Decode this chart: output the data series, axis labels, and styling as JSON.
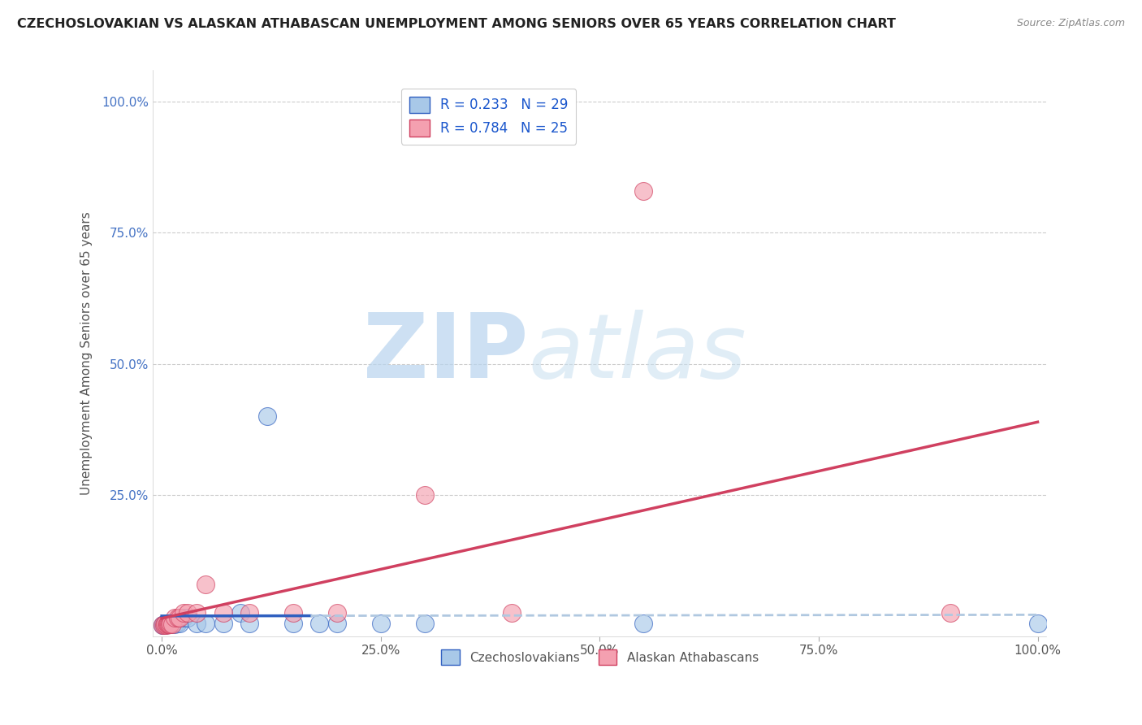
{
  "title": "CZECHOSLOVAKIAN VS ALASKAN ATHABASCAN UNEMPLOYMENT AMONG SENIORS OVER 65 YEARS CORRELATION CHART",
  "source": "Source: ZipAtlas.com",
  "ylabel": "Unemployment Among Seniors over 65 years",
  "legend_label1": "Czechoslovakians",
  "legend_label2": "Alaskan Athabascans",
  "R1": 0.233,
  "N1": 29,
  "R2": 0.784,
  "N2": 25,
  "color1": "#a8c8e8",
  "color2": "#f4a0b0",
  "line_color1": "#3060c0",
  "line_color2": "#d04060",
  "dash_color": "#b0c8e0",
  "watermark_zip": "ZIP",
  "watermark_atlas": "atlas",
  "blue_x": [
    0.001,
    0.002,
    0.003,
    0.004,
    0.005,
    0.006,
    0.007,
    0.008,
    0.009,
    0.01,
    0.012,
    0.015,
    0.018,
    0.02,
    0.025,
    0.03,
    0.04,
    0.05,
    0.07,
    0.09,
    0.1,
    0.12,
    0.15,
    0.18,
    0.2,
    0.25,
    0.3,
    0.55,
    1.0
  ],
  "blue_y": [
    0.002,
    0.001,
    0.003,
    0.002,
    0.004,
    0.003,
    0.005,
    0.003,
    0.004,
    0.003,
    0.005,
    0.004,
    0.006,
    0.005,
    0.015,
    0.015,
    0.005,
    0.005,
    0.005,
    0.025,
    0.005,
    0.4,
    0.005,
    0.005,
    0.005,
    0.005,
    0.005,
    0.005,
    0.005
  ],
  "pink_x": [
    0.001,
    0.003,
    0.004,
    0.005,
    0.006,
    0.007,
    0.008,
    0.009,
    0.01,
    0.012,
    0.015,
    0.018,
    0.02,
    0.025,
    0.03,
    0.04,
    0.05,
    0.07,
    0.1,
    0.15,
    0.2,
    0.3,
    0.4,
    0.55,
    0.9
  ],
  "pink_y": [
    0.001,
    0.002,
    0.003,
    0.002,
    0.004,
    0.003,
    0.004,
    0.003,
    0.005,
    0.004,
    0.015,
    0.015,
    0.015,
    0.025,
    0.025,
    0.025,
    0.08,
    0.025,
    0.025,
    0.025,
    0.025,
    0.25,
    0.025,
    0.83,
    0.025
  ],
  "xlim": [
    -0.01,
    1.01
  ],
  "ylim": [
    -0.02,
    1.06
  ],
  "xticks": [
    0.0,
    0.25,
    0.5,
    0.75,
    1.0
  ],
  "xticklabels": [
    "0.0%",
    "25.0%",
    "50.0%",
    "75.0%",
    "100.0%"
  ],
  "yticks": [
    0.0,
    0.25,
    0.5,
    0.75,
    1.0
  ],
  "yticklabels": [
    "",
    "25.0%",
    "50.0%",
    "75.0%",
    "100.0%"
  ],
  "background_color": "#ffffff",
  "grid_color": "#cccccc"
}
